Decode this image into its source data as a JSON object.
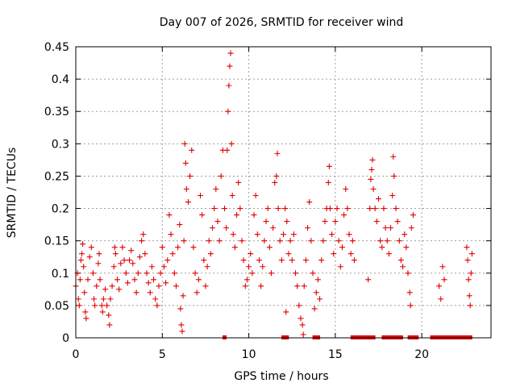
{
  "chart_data": {
    "type": "scatter",
    "title": "Day 007 of 2026, SRMTID for receiver wind",
    "xlabel": "GPS time / hours",
    "ylabel": "SRMTID / TECUs",
    "xlim": [
      0,
      24
    ],
    "ylim": [
      0,
      0.45
    ],
    "x_ticks": [
      0,
      5,
      10,
      15,
      20
    ],
    "x_tick_labels": [
      "0",
      "5",
      "10",
      "15",
      "20"
    ],
    "y_ticks": [
      0,
      0.05,
      0.1,
      0.15,
      0.2,
      0.25,
      0.3,
      0.35,
      0.4,
      0.45
    ],
    "y_tick_labels": [
      "0",
      "0.05",
      "0.1",
      "0.15",
      "0.2",
      "0.25",
      "0.3",
      "0.35",
      "0.4",
      "0.45"
    ],
    "grid": true,
    "marker": "plus",
    "color": "#e00000",
    "series": [
      {
        "name": "SRMTID",
        "points": [
          [
            0.0,
            0.08
          ],
          [
            0.1,
            0.1
          ],
          [
            0.15,
            0.06
          ],
          [
            0.2,
            0.05
          ],
          [
            0.25,
            0.09
          ],
          [
            0.3,
            0.12
          ],
          [
            0.35,
            0.13
          ],
          [
            0.4,
            0.145
          ],
          [
            0.45,
            0.11
          ],
          [
            0.5,
            0.07
          ],
          [
            0.55,
            0.04
          ],
          [
            0.6,
            0.03
          ],
          [
            0.7,
            0.09
          ],
          [
            0.8,
            0.125
          ],
          [
            0.9,
            0.14
          ],
          [
            1.0,
            0.1
          ],
          [
            1.05,
            0.06
          ],
          [
            1.1,
            0.05
          ],
          [
            1.2,
            0.08
          ],
          [
            1.3,
            0.115
          ],
          [
            1.35,
            0.13
          ],
          [
            1.4,
            0.09
          ],
          [
            1.5,
            0.05
          ],
          [
            1.55,
            0.04
          ],
          [
            1.6,
            0.06
          ],
          [
            1.7,
            0.075
          ],
          [
            1.8,
            0.05
          ],
          [
            1.9,
            0.035
          ],
          [
            1.95,
            0.02
          ],
          [
            2.0,
            0.06
          ],
          [
            2.1,
            0.08
          ],
          [
            2.2,
            0.11
          ],
          [
            2.25,
            0.14
          ],
          [
            2.3,
            0.13
          ],
          [
            2.4,
            0.09
          ],
          [
            2.5,
            0.075
          ],
          [
            2.6,
            0.115
          ],
          [
            2.7,
            0.14
          ],
          [
            2.8,
            0.12
          ],
          [
            2.9,
            0.1
          ],
          [
            3.0,
            0.085
          ],
          [
            3.1,
            0.12
          ],
          [
            3.2,
            0.135
          ],
          [
            3.3,
            0.115
          ],
          [
            3.4,
            0.09
          ],
          [
            3.5,
            0.07
          ],
          [
            3.6,
            0.1
          ],
          [
            3.7,
            0.125
          ],
          [
            3.8,
            0.15
          ],
          [
            3.9,
            0.16
          ],
          [
            4.0,
            0.13
          ],
          [
            4.1,
            0.1
          ],
          [
            4.2,
            0.085
          ],
          [
            4.3,
            0.07
          ],
          [
            4.4,
            0.11
          ],
          [
            4.5,
            0.09
          ],
          [
            4.6,
            0.06
          ],
          [
            4.7,
            0.05
          ],
          [
            4.8,
            0.08
          ],
          [
            4.9,
            0.1
          ],
          [
            5.0,
            0.14
          ],
          [
            5.1,
            0.11
          ],
          [
            5.2,
            0.085
          ],
          [
            5.3,
            0.12
          ],
          [
            5.4,
            0.19
          ],
          [
            5.5,
            0.16
          ],
          [
            5.6,
            0.13
          ],
          [
            5.7,
            0.1
          ],
          [
            5.8,
            0.08
          ],
          [
            5.9,
            0.14
          ],
          [
            6.0,
            0.175
          ],
          [
            6.05,
            0.045
          ],
          [
            6.1,
            0.02
          ],
          [
            6.15,
            0.01
          ],
          [
            6.2,
            0.065
          ],
          [
            6.25,
            0.15
          ],
          [
            6.3,
            0.3
          ],
          [
            6.35,
            0.27
          ],
          [
            6.4,
            0.23
          ],
          [
            6.5,
            0.21
          ],
          [
            6.6,
            0.25
          ],
          [
            6.7,
            0.29
          ],
          [
            6.8,
            0.14
          ],
          [
            6.9,
            0.1
          ],
          [
            7.0,
            0.07
          ],
          [
            7.1,
            0.09
          ],
          [
            7.2,
            0.22
          ],
          [
            7.3,
            0.19
          ],
          [
            7.4,
            0.12
          ],
          [
            7.5,
            0.08
          ],
          [
            7.6,
            0.11
          ],
          [
            7.7,
            0.15
          ],
          [
            7.8,
            0.13
          ],
          [
            7.9,
            0.17
          ],
          [
            8.0,
            0.2
          ],
          [
            8.1,
            0.23
          ],
          [
            8.2,
            0.18
          ],
          [
            8.3,
            0.15
          ],
          [
            8.4,
            0.25
          ],
          [
            8.5,
            0.29
          ],
          [
            8.6,
            0.2
          ],
          [
            8.7,
            0.17
          ],
          [
            8.75,
            0.29
          ],
          [
            8.8,
            0.35
          ],
          [
            8.85,
            0.39
          ],
          [
            8.9,
            0.42
          ],
          [
            8.95,
            0.44
          ],
          [
            9.0,
            0.3
          ],
          [
            9.05,
            0.22
          ],
          [
            9.1,
            0.16
          ],
          [
            9.2,
            0.14
          ],
          [
            9.3,
            0.19
          ],
          [
            9.4,
            0.24
          ],
          [
            9.5,
            0.2
          ],
          [
            9.6,
            0.15
          ],
          [
            9.7,
            0.12
          ],
          [
            9.8,
            0.08
          ],
          [
            9.9,
            0.09
          ],
          [
            10.0,
            0.11
          ],
          [
            10.1,
            0.13
          ],
          [
            10.2,
            0.1
          ],
          [
            10.3,
            0.19
          ],
          [
            10.4,
            0.22
          ],
          [
            10.5,
            0.16
          ],
          [
            10.6,
            0.12
          ],
          [
            10.7,
            0.08
          ],
          [
            10.8,
            0.11
          ],
          [
            10.9,
            0.15
          ],
          [
            11.0,
            0.18
          ],
          [
            11.1,
            0.2
          ],
          [
            11.2,
            0.14
          ],
          [
            11.3,
            0.1
          ],
          [
            11.4,
            0.17
          ],
          [
            11.5,
            0.24
          ],
          [
            11.6,
            0.25
          ],
          [
            11.65,
            0.285
          ],
          [
            11.7,
            0.2
          ],
          [
            11.8,
            0.15
          ],
          [
            11.9,
            0.12
          ],
          [
            12.0,
            0.16
          ],
          [
            12.1,
            0.2
          ],
          [
            12.15,
            0.04
          ],
          [
            12.2,
            0.18
          ],
          [
            12.3,
            0.13
          ],
          [
            12.4,
            0.15
          ],
          [
            12.5,
            0.12
          ],
          [
            12.6,
            0.16
          ],
          [
            12.7,
            0.1
          ],
          [
            12.8,
            0.08
          ],
          [
            12.9,
            0.05
          ],
          [
            13.0,
            0.03
          ],
          [
            13.1,
            0.02
          ],
          [
            13.15,
            0.005
          ],
          [
            13.2,
            0.08
          ],
          [
            13.3,
            0.12
          ],
          [
            13.4,
            0.17
          ],
          [
            13.5,
            0.21
          ],
          [
            13.6,
            0.15
          ],
          [
            13.7,
            0.1
          ],
          [
            13.8,
            0.045
          ],
          [
            13.9,
            0.07
          ],
          [
            14.0,
            0.09
          ],
          [
            14.1,
            0.06
          ],
          [
            14.2,
            0.12
          ],
          [
            14.3,
            0.15
          ],
          [
            14.4,
            0.18
          ],
          [
            14.5,
            0.2
          ],
          [
            14.6,
            0.24
          ],
          [
            14.65,
            0.265
          ],
          [
            14.7,
            0.2
          ],
          [
            14.8,
            0.16
          ],
          [
            14.9,
            0.13
          ],
          [
            15.0,
            0.18
          ],
          [
            15.1,
            0.2
          ],
          [
            15.2,
            0.15
          ],
          [
            15.3,
            0.11
          ],
          [
            15.4,
            0.14
          ],
          [
            15.5,
            0.19
          ],
          [
            15.6,
            0.23
          ],
          [
            15.7,
            0.2
          ],
          [
            15.8,
            0.16
          ],
          [
            15.9,
            0.13
          ],
          [
            16.0,
            0.15
          ],
          [
            16.1,
            0.12
          ],
          [
            16.9,
            0.09
          ],
          [
            17.0,
            0.2
          ],
          [
            17.05,
            0.245
          ],
          [
            17.1,
            0.26
          ],
          [
            17.15,
            0.275
          ],
          [
            17.2,
            0.23
          ],
          [
            17.3,
            0.2
          ],
          [
            17.4,
            0.18
          ],
          [
            17.5,
            0.215
          ],
          [
            17.6,
            0.15
          ],
          [
            17.7,
            0.14
          ],
          [
            17.8,
            0.2
          ],
          [
            17.9,
            0.17
          ],
          [
            18.0,
            0.15
          ],
          [
            18.1,
            0.13
          ],
          [
            18.2,
            0.17
          ],
          [
            18.3,
            0.22
          ],
          [
            18.35,
            0.28
          ],
          [
            18.4,
            0.25
          ],
          [
            18.5,
            0.2
          ],
          [
            18.6,
            0.18
          ],
          [
            18.7,
            0.15
          ],
          [
            18.8,
            0.12
          ],
          [
            18.9,
            0.11
          ],
          [
            19.0,
            0.16
          ],
          [
            19.1,
            0.14
          ],
          [
            19.2,
            0.1
          ],
          [
            19.3,
            0.07
          ],
          [
            19.35,
            0.05
          ],
          [
            19.4,
            0.17
          ],
          [
            19.5,
            0.19
          ],
          [
            21.0,
            0.08
          ],
          [
            21.1,
            0.06
          ],
          [
            21.2,
            0.11
          ],
          [
            21.3,
            0.09
          ],
          [
            22.6,
            0.14
          ],
          [
            22.65,
            0.12
          ],
          [
            22.7,
            0.09
          ],
          [
            22.75,
            0.065
          ],
          [
            22.8,
            0.05
          ],
          [
            22.85,
            0.1
          ],
          [
            22.9,
            0.13
          ]
        ]
      }
    ],
    "zero_points_x": [
      8.6,
      12.0,
      12.1,
      12.2,
      13.8,
      13.9,
      14.0,
      16.0,
      16.2,
      16.4,
      16.6,
      16.8,
      17.0,
      17.2,
      17.8,
      18.0,
      18.2,
      18.4,
      18.6,
      18.8,
      19.3,
      19.5,
      19.7,
      20.6,
      20.8,
      21.0,
      21.2,
      21.4,
      21.6,
      21.8,
      22.0,
      22.2,
      22.4,
      22.6,
      22.8
    ]
  }
}
